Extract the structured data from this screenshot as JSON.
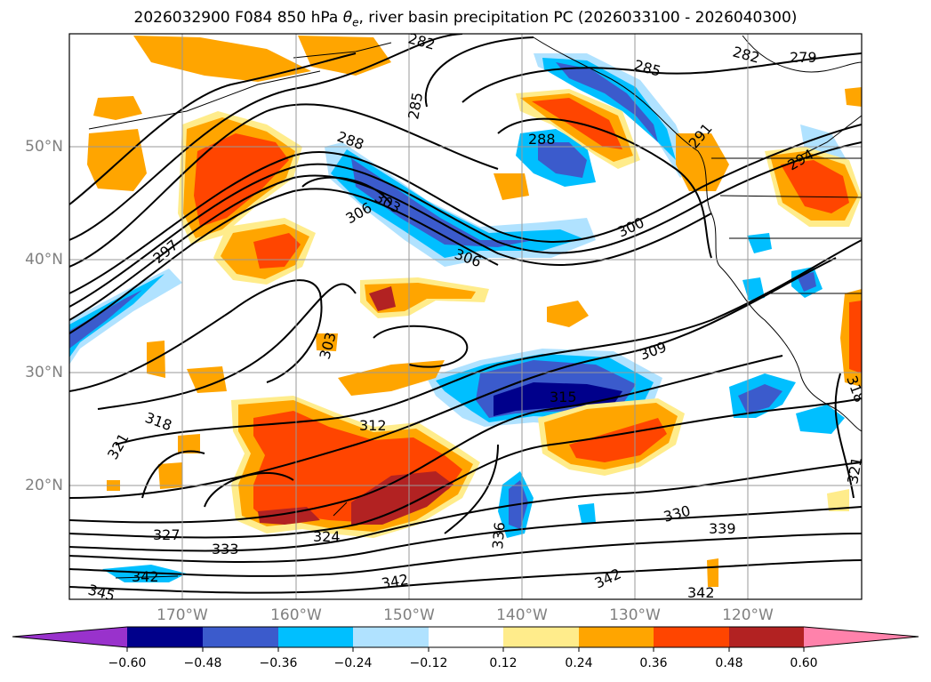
{
  "title": {
    "prefix": "2026032900 F084 850 hPa ",
    "symbol": "θ",
    "subscript": "e",
    "suffix": ", river basin precipitation PC (2026033100 - 2026040300)"
  },
  "map": {
    "projection": "Plate Carree",
    "lon_range": [
      -180,
      -110
    ],
    "lat_range": [
      10,
      60
    ],
    "lat_labels": [
      "50°N",
      "40°N",
      "30°N",
      "20°N"
    ],
    "lat_values": [
      50,
      40,
      30,
      20
    ],
    "lon_labels": [
      "170°W",
      "160°W",
      "150°W",
      "140°W",
      "130°W",
      "120°W"
    ],
    "lon_values": [
      -170,
      -160,
      -150,
      -140,
      -130,
      -120
    ],
    "contour_labels": [
      "282",
      "285",
      "282",
      "279",
      "285",
      "288",
      "288",
      "303",
      "306",
      "306",
      "297",
      "294",
      "291",
      "300",
      "303",
      "309",
      "315",
      "318",
      "312",
      "321",
      "327",
      "333",
      "324",
      "336",
      "330",
      "339",
      "342",
      "345",
      "342",
      "342",
      "342",
      "321",
      "318"
    ]
  },
  "colorbar": {
    "ticks": [
      "−0.60",
      "−0.48",
      "−0.36",
      "−0.24",
      "−0.12",
      "0.12",
      "0.24",
      "0.36",
      "0.48",
      "0.60"
    ],
    "colors": [
      "#9932cc",
      "#00008b",
      "#3b5bcc",
      "#00bfff",
      "#b0e2ff",
      "#ffffff",
      "#ffec8b",
      "#ffa500",
      "#ff4500",
      "#b22222",
      "#ff82ab"
    ]
  }
}
